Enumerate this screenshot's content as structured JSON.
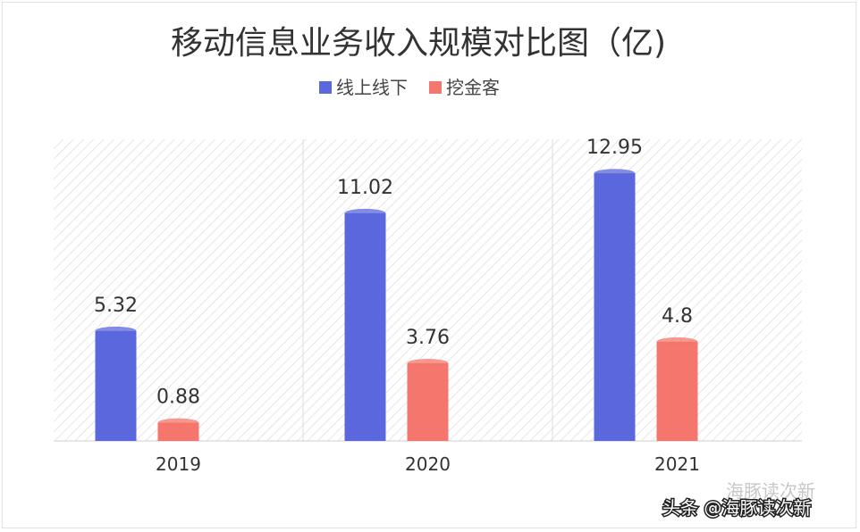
{
  "chart_data": {
    "type": "bar",
    "title": "移动信息业务收入规模对比图（亿)",
    "categories": [
      "2019",
      "2020",
      "2021"
    ],
    "series": [
      {
        "name": "线上线下",
        "values": [
          5.32,
          11.02,
          12.95
        ],
        "labels": [
          "5.32",
          "11.02",
          "12.95"
        ],
        "color": "#5b67dc"
      },
      {
        "name": "挖金客",
        "values": [
          0.88,
          3.76,
          4.8
        ],
        "labels": [
          "0.88",
          "3.76",
          "4.8"
        ],
        "color": "#f4766c"
      }
    ],
    "ylim": [
      0,
      14.6
    ],
    "grid": false,
    "legend_position": "top-center",
    "background": "hatched panels"
  },
  "watermark": {
    "top_text": "海豚读次新",
    "main_text": "头条 @海豚读次新"
  }
}
